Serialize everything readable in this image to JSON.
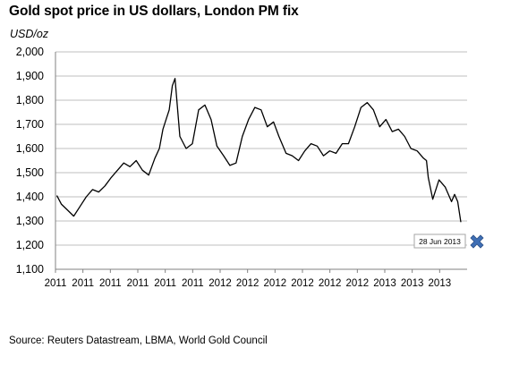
{
  "title": "Gold spot price in US dollars, London PM fix",
  "unit": "USD/oz",
  "source": "Source: Reuters Datastream, LBMA, World Gold Council",
  "colors": {
    "line": "#000000",
    "grid": "#bfbfbf",
    "marker": "#3f6fb5",
    "annotation_border": "#a6a6a6"
  },
  "chart_data": {
    "type": "line",
    "title": "Gold spot price in US dollars, London PM fix",
    "ylabel": "USD/oz",
    "xlabel": "",
    "ylim": [
      1100,
      2000
    ],
    "yticks": [
      1100,
      1200,
      1300,
      1400,
      1500,
      1600,
      1700,
      1800,
      1900,
      2000
    ],
    "ytick_labels": [
      "1,100",
      "1,200",
      "1,300",
      "1,400",
      "1,500",
      "1,600",
      "1,700",
      "1,800",
      "1,900",
      "2,000"
    ],
    "xtick_labels": [
      "2011",
      "2011",
      "2011",
      "2011",
      "2011",
      "2011",
      "2012",
      "2012",
      "2012",
      "2012",
      "2012",
      "2012",
      "2013",
      "2013",
      "2013"
    ],
    "grid": true,
    "legend": "none",
    "series": [
      {
        "x": [
          "2011-01-04",
          "2011-01-14",
          "2011-01-28",
          "2011-02-11",
          "2011-02-25",
          "2011-03-11",
          "2011-03-25",
          "2011-04-08",
          "2011-04-22",
          "2011-05-06",
          "2011-05-20",
          "2011-06-03",
          "2011-06-17",
          "2011-07-01",
          "2011-07-15",
          "2011-07-29",
          "2011-08-12",
          "2011-08-22",
          "2011-08-30",
          "2011-09-06",
          "2011-09-13",
          "2011-09-20",
          "2011-09-26",
          "2011-10-07",
          "2011-10-21",
          "2011-11-04",
          "2011-11-18",
          "2011-12-02",
          "2011-12-16",
          "2011-12-29",
          "2012-01-13",
          "2012-01-27",
          "2012-02-10",
          "2012-02-24",
          "2012-03-09",
          "2012-03-23",
          "2012-04-06",
          "2012-04-20",
          "2012-05-04",
          "2012-05-16",
          "2012-06-01",
          "2012-06-15",
          "2012-06-29",
          "2012-07-13",
          "2012-07-27",
          "2012-08-10",
          "2012-08-24",
          "2012-09-07",
          "2012-09-21",
          "2012-10-05",
          "2012-10-19",
          "2012-11-02",
          "2012-11-16",
          "2012-11-30",
          "2012-12-14",
          "2012-12-28",
          "2013-01-11",
          "2013-01-25",
          "2013-02-08",
          "2013-02-22",
          "2013-03-08",
          "2013-03-22",
          "2013-04-05",
          "2013-04-12",
          "2013-04-16",
          "2013-04-26",
          "2013-05-10",
          "2013-05-24",
          "2013-06-07",
          "2013-06-14",
          "2013-06-21",
          "2013-06-28"
        ],
        "values": [
          1405,
          1370,
          1345,
          1320,
          1360,
          1400,
          1430,
          1420,
          1445,
          1480,
          1510,
          1540,
          1525,
          1550,
          1510,
          1490,
          1560,
          1600,
          1680,
          1720,
          1760,
          1860,
          1890,
          1650,
          1600,
          1620,
          1760,
          1780,
          1720,
          1610,
          1570,
          1530,
          1540,
          1650,
          1720,
          1770,
          1760,
          1690,
          1710,
          1650,
          1580,
          1570,
          1550,
          1590,
          1620,
          1610,
          1570,
          1590,
          1580,
          1620,
          1620,
          1690,
          1770,
          1790,
          1760,
          1690,
          1720,
          1670,
          1680,
          1650,
          1600,
          1590,
          1560,
          1550,
          1480,
          1390,
          1470,
          1440,
          1380,
          1410,
          1380,
          1295
        ]
      }
    ],
    "annotations": [
      {
        "text": "28 Jun 2013",
        "x": "2013-06-28",
        "value": 1200
      }
    ]
  }
}
